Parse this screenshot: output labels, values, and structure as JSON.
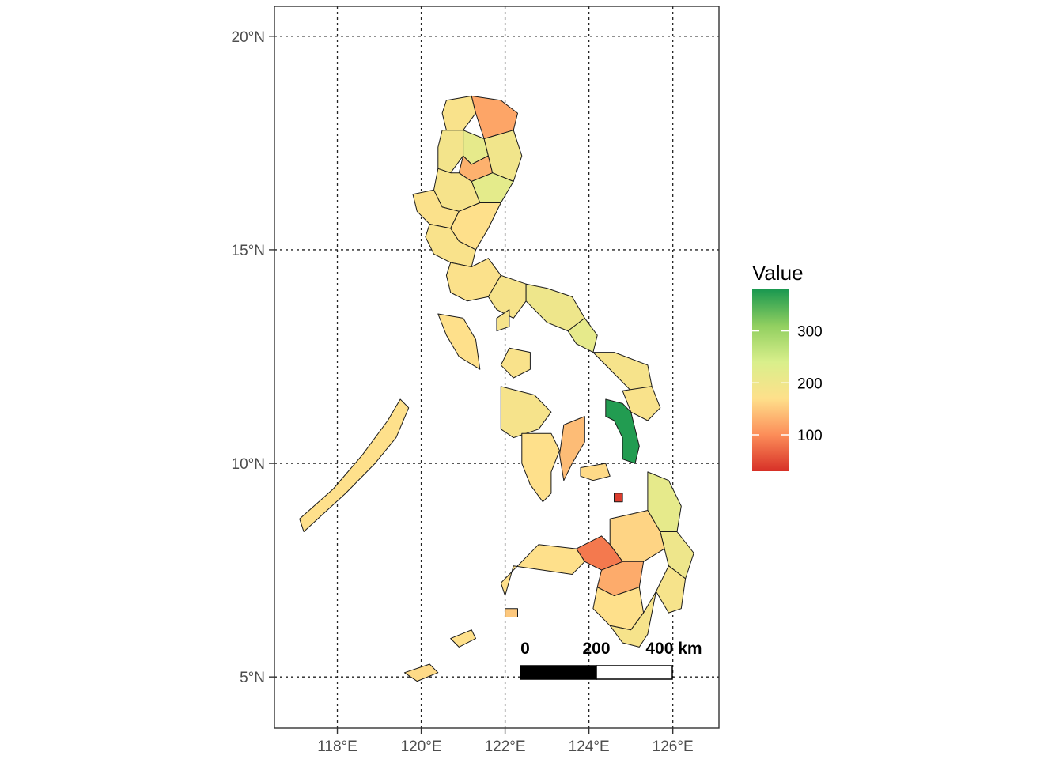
{
  "map": {
    "x_ticks": [
      {
        "value": 118,
        "label": "118°E"
      },
      {
        "value": 120,
        "label": "120°E"
      },
      {
        "value": 122,
        "label": "122°E"
      },
      {
        "value": 124,
        "label": "124°E"
      },
      {
        "value": 126,
        "label": "126°E"
      }
    ],
    "y_ticks": [
      {
        "value": 20,
        "label": "20°N"
      },
      {
        "value": 15,
        "label": "15°N"
      },
      {
        "value": 10,
        "label": "10°N"
      },
      {
        "value": 5,
        "label": "5°N"
      }
    ],
    "x_range": [
      116.5,
      127.1
    ],
    "y_range": [
      3.8,
      20.7
    ],
    "grid": "dotted",
    "scale_bar": {
      "labels": [
        "0",
        "200",
        "400 km"
      ],
      "colors": [
        "#000000",
        "#ffffff"
      ]
    },
    "legend": {
      "title": "Value",
      "ticks": [
        {
          "value": 300,
          "label": "300"
        },
        {
          "value": 200,
          "label": "200"
        },
        {
          "value": 100,
          "label": "100"
        }
      ],
      "range": [
        30,
        380
      ],
      "colors": [
        "#d73027",
        "#fc8d59",
        "#fee08b",
        "#d9ef8b",
        "#91cf60",
        "#1a9850"
      ],
      "placement": "right"
    },
    "regions": [
      {
        "value": 180,
        "pts": [
          [
            120.6,
            18.5
          ],
          [
            121.2,
            18.6
          ],
          [
            121.3,
            18.2
          ],
          [
            121.0,
            17.8
          ],
          [
            120.6,
            17.8
          ],
          [
            120.5,
            18.2
          ]
        ]
      },
      {
        "value": 120,
        "pts": [
          [
            121.2,
            18.6
          ],
          [
            121.9,
            18.5
          ],
          [
            122.3,
            18.2
          ],
          [
            122.2,
            17.8
          ],
          [
            121.5,
            17.6
          ],
          [
            121.3,
            18.2
          ]
        ]
      },
      {
        "value": 190,
        "pts": [
          [
            120.5,
            17.8
          ],
          [
            121.0,
            17.8
          ],
          [
            121.0,
            17.2
          ],
          [
            120.7,
            16.8
          ],
          [
            120.4,
            16.9
          ],
          [
            120.4,
            17.4
          ]
        ]
      },
      {
        "value": 215,
        "pts": [
          [
            121.0,
            17.8
          ],
          [
            121.5,
            17.6
          ],
          [
            121.6,
            17.2
          ],
          [
            121.2,
            17.0
          ],
          [
            121.0,
            17.2
          ]
        ]
      },
      {
        "value": 130,
        "pts": [
          [
            121.0,
            17.2
          ],
          [
            121.2,
            17.0
          ],
          [
            121.6,
            17.2
          ],
          [
            121.7,
            16.8
          ],
          [
            121.2,
            16.6
          ],
          [
            120.9,
            16.8
          ]
        ]
      },
      {
        "value": 195,
        "pts": [
          [
            121.5,
            17.6
          ],
          [
            122.2,
            17.8
          ],
          [
            122.4,
            17.2
          ],
          [
            122.2,
            16.6
          ],
          [
            121.7,
            16.8
          ],
          [
            121.6,
            17.2
          ]
        ]
      },
      {
        "value": 220,
        "pts": [
          [
            121.2,
            16.6
          ],
          [
            121.7,
            16.8
          ],
          [
            122.2,
            16.6
          ],
          [
            121.9,
            16.1
          ],
          [
            121.4,
            16.1
          ]
        ]
      },
      {
        "value": 185,
        "pts": [
          [
            120.4,
            16.9
          ],
          [
            120.7,
            16.8
          ],
          [
            120.9,
            16.8
          ],
          [
            121.2,
            16.6
          ],
          [
            121.4,
            16.1
          ],
          [
            120.9,
            15.9
          ],
          [
            120.5,
            16.0
          ],
          [
            120.3,
            16.4
          ]
        ]
      },
      {
        "value": 175,
        "pts": [
          [
            119.8,
            16.3
          ],
          [
            120.3,
            16.4
          ],
          [
            120.5,
            16.0
          ],
          [
            120.9,
            15.9
          ],
          [
            120.7,
            15.5
          ],
          [
            120.2,
            15.6
          ],
          [
            119.9,
            15.9
          ]
        ]
      },
      {
        "value": 170,
        "pts": [
          [
            120.9,
            15.9
          ],
          [
            121.4,
            16.1
          ],
          [
            121.9,
            16.1
          ],
          [
            121.6,
            15.5
          ],
          [
            121.3,
            15.0
          ],
          [
            120.9,
            15.2
          ],
          [
            120.7,
            15.5
          ]
        ]
      },
      {
        "value": 180,
        "pts": [
          [
            120.2,
            15.6
          ],
          [
            120.7,
            15.5
          ],
          [
            120.9,
            15.2
          ],
          [
            121.3,
            15.0
          ],
          [
            121.2,
            14.6
          ],
          [
            120.7,
            14.7
          ],
          [
            120.3,
            14.9
          ],
          [
            120.1,
            15.3
          ]
        ]
      },
      {
        "value": 175,
        "pts": [
          [
            121.2,
            14.6
          ],
          [
            121.6,
            14.8
          ],
          [
            121.9,
            14.4
          ],
          [
            121.6,
            13.9
          ],
          [
            121.1,
            13.8
          ],
          [
            120.7,
            14.0
          ],
          [
            120.6,
            14.4
          ],
          [
            120.7,
            14.7
          ]
        ]
      },
      {
        "value": 185,
        "pts": [
          [
            121.6,
            13.9
          ],
          [
            121.9,
            14.4
          ],
          [
            122.5,
            14.2
          ],
          [
            122.5,
            13.8
          ],
          [
            122.2,
            13.4
          ],
          [
            121.8,
            13.6
          ]
        ]
      },
      {
        "value": 200,
        "pts": [
          [
            122.5,
            14.2
          ],
          [
            123.0,
            14.1
          ],
          [
            123.6,
            13.9
          ],
          [
            123.9,
            13.4
          ],
          [
            123.5,
            13.1
          ],
          [
            123.0,
            13.3
          ],
          [
            122.5,
            13.8
          ]
        ]
      },
      {
        "value": 215,
        "pts": [
          [
            123.5,
            13.1
          ],
          [
            123.9,
            13.4
          ],
          [
            124.2,
            13.0
          ],
          [
            124.1,
            12.6
          ],
          [
            123.7,
            12.8
          ]
        ]
      },
      {
        "value": 170,
        "pts": [
          [
            120.4,
            13.5
          ],
          [
            121.0,
            13.4
          ],
          [
            121.3,
            12.9
          ],
          [
            121.4,
            12.2
          ],
          [
            120.9,
            12.5
          ],
          [
            120.6,
            13.0
          ]
        ]
      },
      {
        "value": 185,
        "pts": [
          [
            121.8,
            13.4
          ],
          [
            122.1,
            13.6
          ],
          [
            122.1,
            13.2
          ],
          [
            121.8,
            13.1
          ]
        ]
      },
      {
        "value": 180,
        "pts": [
          [
            122.1,
            12.7
          ],
          [
            122.6,
            12.6
          ],
          [
            122.6,
            12.2
          ],
          [
            122.2,
            12.0
          ],
          [
            121.9,
            12.3
          ]
        ]
      },
      {
        "value": 170,
        "pts": [
          [
            117.2,
            8.4
          ],
          [
            118.2,
            9.3
          ],
          [
            118.9,
            10.0
          ],
          [
            119.4,
            10.6
          ],
          [
            119.7,
            11.3
          ],
          [
            119.5,
            11.5
          ],
          [
            119.2,
            11.0
          ],
          [
            118.6,
            10.2
          ],
          [
            117.9,
            9.4
          ],
          [
            117.1,
            8.7
          ]
        ]
      },
      {
        "value": 185,
        "pts": [
          [
            124.1,
            12.6
          ],
          [
            124.6,
            12.6
          ],
          [
            125.4,
            12.3
          ],
          [
            125.5,
            11.8
          ],
          [
            125.0,
            11.7
          ],
          [
            124.6,
            12.1
          ]
        ]
      },
      {
        "value": 180,
        "pts": [
          [
            124.8,
            11.7
          ],
          [
            125.5,
            11.8
          ],
          [
            125.7,
            11.3
          ],
          [
            125.4,
            11.0
          ],
          [
            125.0,
            11.2
          ]
        ]
      },
      {
        "value": 375,
        "pts": [
          [
            124.4,
            11.5
          ],
          [
            124.8,
            11.4
          ],
          [
            125.0,
            11.2
          ],
          [
            125.1,
            10.8
          ],
          [
            125.2,
            10.4
          ],
          [
            125.1,
            10.0
          ],
          [
            124.8,
            10.1
          ],
          [
            124.8,
            10.6
          ],
          [
            124.6,
            11.0
          ],
          [
            124.4,
            11.1
          ]
        ]
      },
      {
        "value": 185,
        "pts": [
          [
            121.9,
            11.8
          ],
          [
            122.7,
            11.6
          ],
          [
            123.1,
            11.2
          ],
          [
            122.8,
            10.8
          ],
          [
            122.2,
            10.6
          ],
          [
            121.9,
            10.8
          ],
          [
            121.9,
            11.3
          ]
        ]
      },
      {
        "value": 170,
        "pts": [
          [
            122.4,
            10.7
          ],
          [
            123.1,
            10.7
          ],
          [
            123.3,
            10.3
          ],
          [
            123.1,
            9.8
          ],
          [
            123.1,
            9.3
          ],
          [
            122.9,
            9.1
          ],
          [
            122.6,
            9.5
          ],
          [
            122.4,
            10.0
          ]
        ]
      },
      {
        "value": 140,
        "pts": [
          [
            123.4,
            10.9
          ],
          [
            123.9,
            11.1
          ],
          [
            123.9,
            10.5
          ],
          [
            123.6,
            10.0
          ],
          [
            123.4,
            9.6
          ],
          [
            123.3,
            10.2
          ]
        ]
      },
      {
        "value": 165,
        "pts": [
          [
            123.8,
            9.9
          ],
          [
            124.4,
            10.0
          ],
          [
            124.5,
            9.7
          ],
          [
            124.1,
            9.6
          ],
          [
            123.8,
            9.7
          ]
        ]
      },
      {
        "value": 40,
        "pts": [
          [
            124.6,
            9.3
          ],
          [
            124.8,
            9.3
          ],
          [
            124.8,
            9.1
          ],
          [
            124.6,
            9.1
          ]
        ]
      },
      {
        "value": 215,
        "pts": [
          [
            125.4,
            9.8
          ],
          [
            125.9,
            9.6
          ],
          [
            126.2,
            9.0
          ],
          [
            126.1,
            8.4
          ],
          [
            125.7,
            8.4
          ],
          [
            125.4,
            8.9
          ]
        ]
      },
      {
        "value": 200,
        "pts": [
          [
            125.7,
            8.4
          ],
          [
            126.1,
            8.4
          ],
          [
            126.5,
            7.9
          ],
          [
            126.3,
            7.3
          ],
          [
            125.9,
            7.6
          ],
          [
            125.8,
            8.0
          ]
        ]
      },
      {
        "value": 185,
        "pts": [
          [
            125.9,
            7.6
          ],
          [
            126.3,
            7.3
          ],
          [
            126.2,
            6.6
          ],
          [
            125.9,
            6.5
          ],
          [
            125.6,
            7.0
          ]
        ]
      },
      {
        "value": 160,
        "pts": [
          [
            124.5,
            8.7
          ],
          [
            125.4,
            8.9
          ],
          [
            125.7,
            8.4
          ],
          [
            125.8,
            8.0
          ],
          [
            125.3,
            7.7
          ],
          [
            124.8,
            7.7
          ],
          [
            124.5,
            8.1
          ]
        ]
      },
      {
        "value": 85,
        "pts": [
          [
            123.7,
            8.0
          ],
          [
            124.3,
            8.3
          ],
          [
            124.5,
            8.1
          ],
          [
            124.8,
            7.7
          ],
          [
            124.3,
            7.5
          ],
          [
            123.9,
            7.7
          ]
        ]
      },
      {
        "value": 170,
        "pts": [
          [
            122.8,
            8.1
          ],
          [
            123.7,
            8.0
          ],
          [
            123.9,
            7.7
          ],
          [
            123.6,
            7.4
          ],
          [
            122.9,
            7.5
          ],
          [
            122.2,
            7.6
          ],
          [
            122.0,
            6.9
          ],
          [
            121.9,
            7.2
          ]
        ]
      },
      {
        "value": 125,
        "pts": [
          [
            124.3,
            7.5
          ],
          [
            124.8,
            7.7
          ],
          [
            125.3,
            7.7
          ],
          [
            125.2,
            7.1
          ],
          [
            124.6,
            6.9
          ],
          [
            124.2,
            7.1
          ]
        ]
      },
      {
        "value": 170,
        "pts": [
          [
            124.2,
            7.1
          ],
          [
            124.6,
            6.9
          ],
          [
            125.2,
            7.1
          ],
          [
            125.3,
            6.5
          ],
          [
            125.0,
            6.1
          ],
          [
            124.5,
            6.2
          ],
          [
            124.1,
            6.6
          ]
        ]
      },
      {
        "value": 185,
        "pts": [
          [
            124.5,
            6.2
          ],
          [
            125.0,
            6.1
          ],
          [
            125.3,
            6.5
          ],
          [
            125.6,
            7.0
          ],
          [
            125.4,
            6.0
          ],
          [
            125.2,
            5.7
          ],
          [
            124.8,
            5.8
          ]
        ]
      },
      {
        "value": 150,
        "pts": [
          [
            122.0,
            6.6
          ],
          [
            122.3,
            6.6
          ],
          [
            122.3,
            6.4
          ],
          [
            122.0,
            6.4
          ]
        ]
      },
      {
        "value": 170,
        "pts": [
          [
            120.7,
            5.9
          ],
          [
            121.2,
            6.1
          ],
          [
            121.3,
            5.9
          ],
          [
            120.9,
            5.7
          ]
        ]
      },
      {
        "value": 165,
        "pts": [
          [
            119.6,
            5.1
          ],
          [
            120.2,
            5.3
          ],
          [
            120.4,
            5.1
          ],
          [
            119.9,
            4.9
          ]
        ]
      }
    ]
  }
}
